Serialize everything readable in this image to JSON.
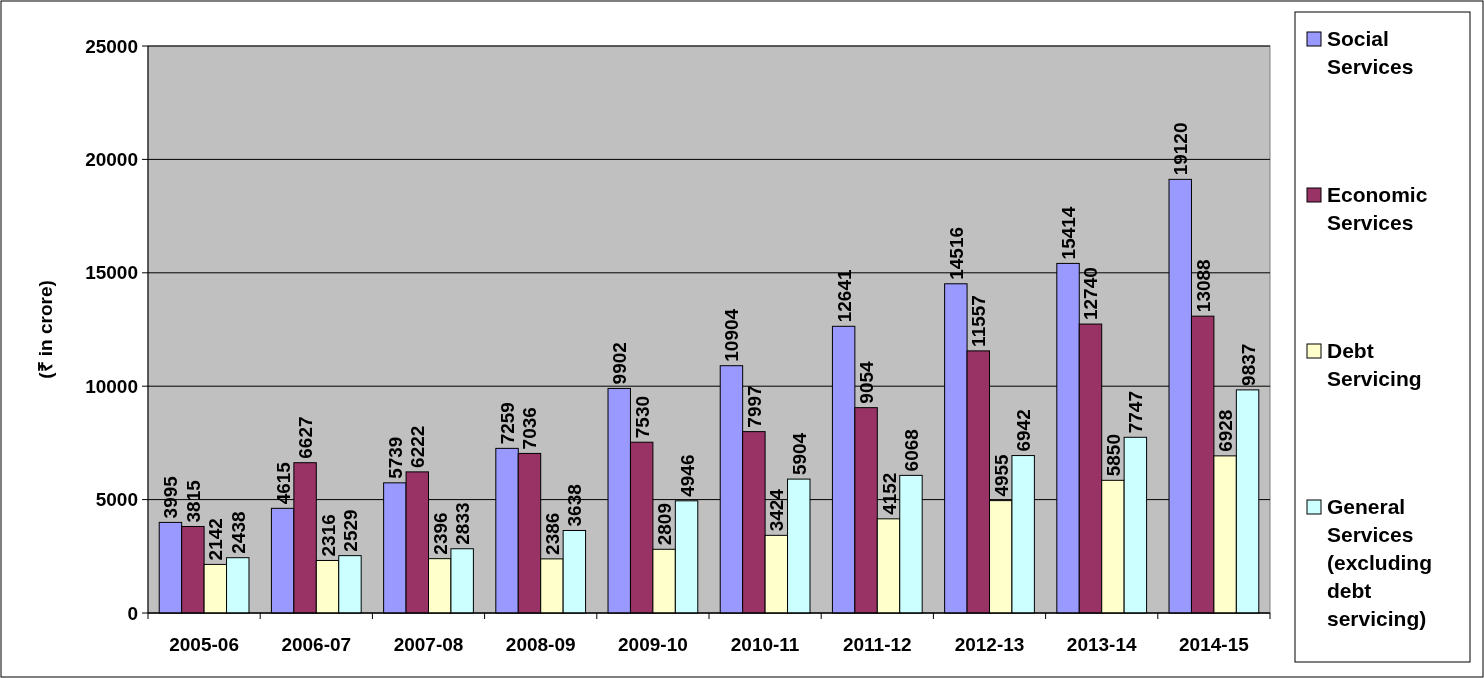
{
  "chart_data": {
    "type": "bar",
    "ylabel": "(₹ in crore)",
    "categories": [
      "2005-06",
      "2006-07",
      "2007-08",
      "2008-09",
      "2009-10",
      "2010-11",
      "2011-12",
      "2012-13",
      "2013-14",
      "2014-15"
    ],
    "series": [
      {
        "name": "Social Services",
        "color": "#9999ff",
        "values": [
          3995,
          4615,
          5739,
          7259,
          9902,
          10904,
          12641,
          14516,
          15414,
          19120
        ]
      },
      {
        "name": "Economic Services",
        "color": "#993366",
        "values": [
          3815,
          6627,
          6222,
          7036,
          7530,
          7997,
          9054,
          11557,
          12740,
          13088
        ]
      },
      {
        "name": "Debt Servicing",
        "color": "#ffffcc",
        "values": [
          2142,
          2316,
          2396,
          2386,
          2809,
          3424,
          4152,
          4955,
          5850,
          6928
        ]
      },
      {
        "name": "General Services (excluding debt servicing)",
        "color": "#ccffff",
        "values": [
          2438,
          2529,
          2833,
          3638,
          4946,
          5904,
          6068,
          6942,
          7747,
          9837
        ]
      }
    ],
    "ylim": [
      0,
      25000
    ],
    "yticks": [
      0,
      5000,
      10000,
      15000,
      20000,
      25000
    ],
    "grid": "y",
    "legend": "right",
    "data_labels": true
  }
}
